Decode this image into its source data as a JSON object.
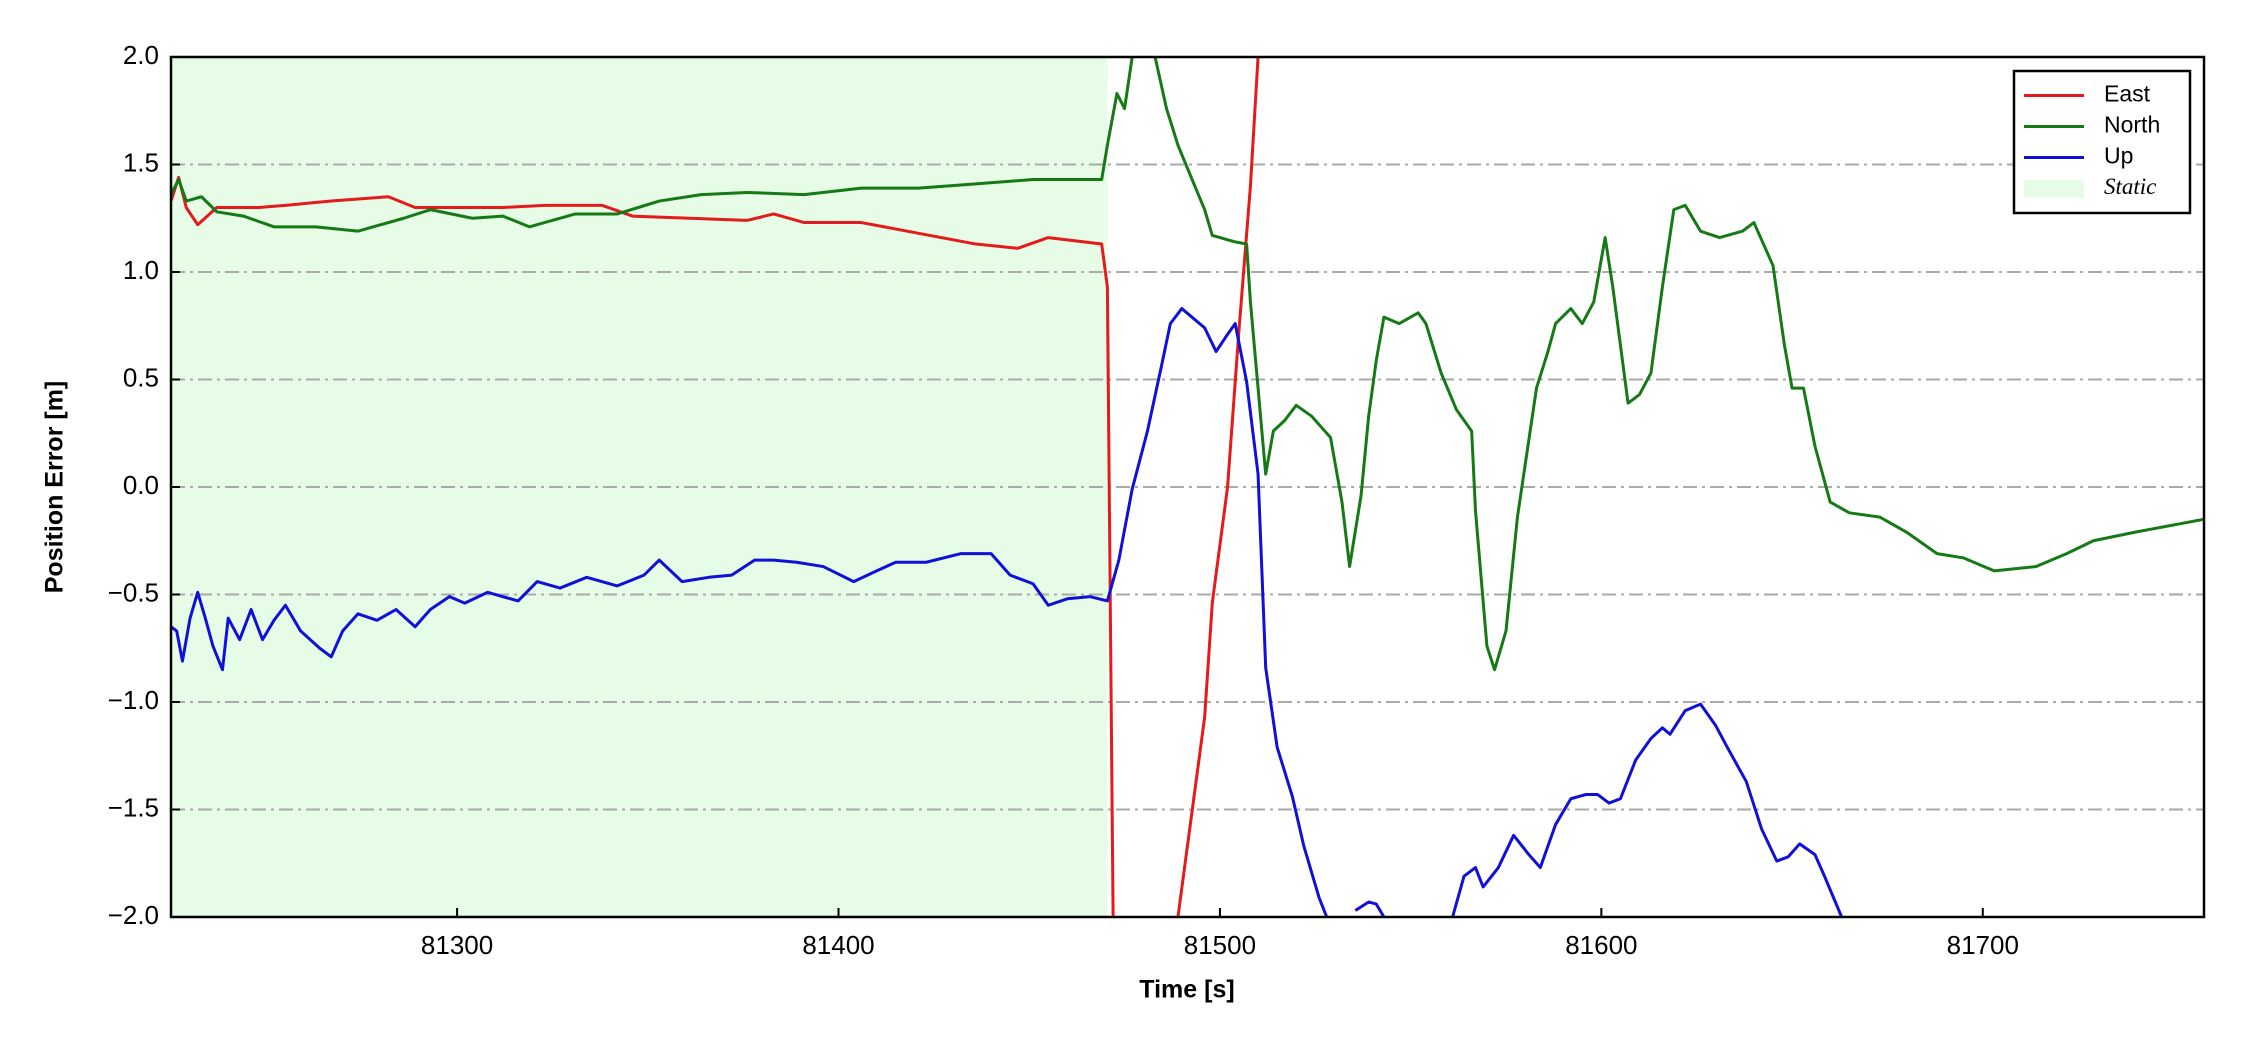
{
  "chart_data": {
    "type": "line",
    "xlabel": "Time [s]",
    "ylabel": "Position Error [m]",
    "xlim": [
      81225,
      81758
    ],
    "ylim": [
      -2.0,
      2.0
    ],
    "xticks": [
      81300,
      81400,
      81500,
      81600,
      81700
    ],
    "yticks": [
      {
        "value": -2.0,
        "label": "−2.0"
      },
      {
        "value": -1.5,
        "label": "−1.5"
      },
      {
        "value": -1.0,
        "label": "−1.0"
      },
      {
        "value": -0.5,
        "label": "−0.5"
      },
      {
        "value": 0.0,
        "label": "0.0"
      },
      {
        "value": 0.5,
        "label": "0.5"
      },
      {
        "value": 1.0,
        "label": "1.0"
      },
      {
        "value": 1.5,
        "label": "1.5"
      },
      {
        "value": 2.0,
        "label": "2.0"
      }
    ],
    "grid": true,
    "legend": "upper right",
    "series": [
      {
        "name": "East",
        "color": "#e41a1c",
        "x": [
          81225,
          81227,
          81229,
          81232,
          81237,
          81248,
          81255,
          81267,
          81282,
          81289,
          81301,
          81312,
          81323,
          81338,
          81346,
          81361,
          81376,
          81383,
          81391,
          81406,
          81421,
          81436,
          81447,
          81455,
          81469,
          81470.5,
          81472,
          81480,
          81489,
          81496,
          81498,
          81502,
          81505,
          81508,
          81510
        ],
        "values": [
          1.33,
          1.44,
          1.3,
          1.22,
          1.3,
          1.3,
          1.31,
          1.33,
          1.35,
          1.3,
          1.3,
          1.3,
          1.31,
          1.31,
          1.26,
          1.25,
          1.24,
          1.27,
          1.23,
          1.23,
          1.18,
          1.13,
          1.11,
          1.16,
          1.13,
          0.93,
          -2.0,
          null,
          -2.0,
          -1.07,
          -0.54,
          0,
          0.73,
          1.4,
          2.0
        ]
      },
      {
        "name": "North",
        "color": "#157a15",
        "x": [
          81225,
          81227,
          81229,
          81233,
          81237,
          81244,
          81252,
          81263,
          81274,
          81286,
          81293,
          81304,
          81312,
          81319,
          81331,
          81342,
          81353,
          81364,
          81376,
          81391,
          81406,
          81421,
          81436,
          81451,
          81469,
          81470.5,
          81473,
          81475,
          81477,
          81481,
          81483,
          81486,
          81489,
          81492,
          81496,
          81498,
          81500,
          81504,
          81507,
          81508,
          81510,
          81512,
          81514,
          81517,
          81520,
          81524,
          81529,
          81532,
          81534,
          81537,
          81539,
          81541,
          81543,
          81547,
          81552,
          81554,
          81558,
          81562,
          81566,
          81567,
          81570,
          81572,
          81575,
          81578,
          81583,
          81586,
          81588,
          81592,
          81595,
          81598,
          81601,
          81603,
          81607,
          81610,
          81613,
          81616,
          81619,
          81622,
          81626,
          81631,
          81637,
          81640,
          81645,
          81648,
          81650,
          81653,
          81656,
          81660,
          81665,
          81673,
          81680,
          81688,
          81695,
          81703,
          81714,
          81722,
          81729,
          81740,
          81752,
          81758
        ],
        "values": [
          1.36,
          1.43,
          1.33,
          1.35,
          1.28,
          1.26,
          1.21,
          1.21,
          1.19,
          1.25,
          1.29,
          1.25,
          1.26,
          1.21,
          1.27,
          1.27,
          1.33,
          1.36,
          1.37,
          1.36,
          1.39,
          1.39,
          1.41,
          1.43,
          1.43,
          1.59,
          1.83,
          1.76,
          2.0,
          2.1,
          2.0,
          1.76,
          1.59,
          1.46,
          1.29,
          1.17,
          1.16,
          1.14,
          1.13,
          0.86,
          0.46,
          0.06,
          0.26,
          0.31,
          0.38,
          0.33,
          0.23,
          -0.07,
          -0.37,
          -0.04,
          0.33,
          0.59,
          0.79,
          0.76,
          0.81,
          0.76,
          0.53,
          0.36,
          0.26,
          -0.11,
          -0.74,
          -0.85,
          -0.67,
          -0.14,
          0.46,
          0.63,
          0.76,
          0.83,
          0.76,
          0.86,
          1.16,
          0.93,
          0.39,
          0.43,
          0.53,
          0.93,
          1.29,
          1.31,
          1.19,
          1.16,
          1.19,
          1.23,
          1.03,
          0.66,
          0.46,
          0.46,
          0.19,
          -0.07,
          -0.12,
          -0.14,
          -0.21,
          -0.31,
          -0.33,
          -0.39,
          -0.37,
          -0.31,
          -0.25,
          -0.21,
          -0.17,
          -0.15
        ]
      },
      {
        "name": "Up",
        "color": "#1010d8",
        "x": [
          81225,
          81226.5,
          81228,
          81230,
          81232,
          81234,
          81236,
          81238.5,
          81240,
          81243,
          81246,
          81249,
          81252,
          81255,
          81259,
          81264,
          81267,
          81270,
          81274,
          81279,
          81284,
          81289,
          81293,
          81298,
          81302,
          81308,
          81316,
          81321,
          81327,
          81334,
          81342,
          81349,
          81353,
          81359,
          81366,
          81372,
          81378,
          81383,
          81389,
          81396,
          81404,
          81410,
          81415,
          81423,
          81432,
          81440,
          81445,
          81451,
          81455,
          81460,
          81466,
          81470.5,
          81473.5,
          81477,
          81481,
          81485,
          81487,
          81490,
          81496,
          81499,
          81502,
          81504,
          81507,
          81510,
          81512,
          81515,
          81519,
          81522,
          81526,
          81528,
          81532,
          81535.5,
          81539,
          81541,
          81543,
          81552,
          81561,
          81564,
          81567,
          81569,
          81573,
          81577,
          81581,
          81584,
          81588,
          81592,
          81596,
          81599,
          81602,
          81605,
          81609,
          81613,
          81616,
          81618,
          81622,
          81626,
          81630,
          81633,
          81638,
          81642,
          81646,
          81649,
          81652,
          81656,
          81658.5,
          81663
        ],
        "values": [
          -0.65,
          -0.67,
          -0.81,
          -0.61,
          -0.49,
          -0.61,
          -0.74,
          -0.85,
          -0.61,
          -0.71,
          -0.57,
          -0.71,
          -0.62,
          -0.55,
          -0.67,
          -0.75,
          -0.79,
          -0.67,
          -0.59,
          -0.62,
          -0.57,
          -0.65,
          -0.57,
          -0.51,
          -0.54,
          -0.49,
          -0.53,
          -0.44,
          -0.47,
          -0.42,
          -0.46,
          -0.41,
          -0.34,
          -0.44,
          -0.42,
          -0.41,
          -0.34,
          -0.34,
          -0.35,
          -0.37,
          -0.44,
          -0.39,
          -0.35,
          -0.35,
          -0.31,
          -0.31,
          -0.41,
          -0.45,
          -0.55,
          -0.52,
          -0.51,
          -0.53,
          -0.34,
          -0.01,
          0.26,
          0.59,
          0.76,
          0.83,
          0.74,
          0.63,
          0.71,
          0.76,
          0.49,
          0.06,
          -0.84,
          -1.21,
          -1.44,
          -1.67,
          -1.91,
          -2.0,
          null,
          -1.97,
          -1.93,
          -1.94,
          -2.0,
          null,
          -2.0,
          -1.81,
          -1.77,
          -1.86,
          -1.77,
          -1.62,
          -1.71,
          -1.77,
          -1.57,
          -1.45,
          -1.43,
          -1.43,
          -1.47,
          -1.45,
          -1.27,
          -1.17,
          -1.12,
          -1.15,
          -1.04,
          -1.01,
          -1.11,
          -1.21,
          -1.37,
          -1.59,
          -1.74,
          -1.72,
          -1.66,
          -1.71,
          -1.81,
          -2.0
        ]
      }
    ],
    "spans": [
      {
        "name": "Static",
        "color": "#e6fce6",
        "x": [
          81225,
          81470.5
        ]
      }
    ]
  }
}
